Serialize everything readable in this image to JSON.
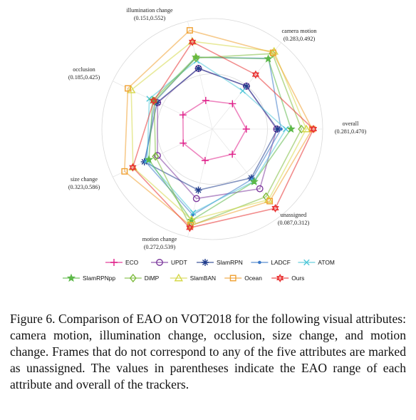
{
  "chart_data": {
    "type": "radar",
    "axes": [
      {
        "name": "overall",
        "range_label": "(0.281,0.470)",
        "min": 0.281,
        "max": 0.47
      },
      {
        "name": "camera motion",
        "range_label": "(0.283,0.492)",
        "min": 0.283,
        "max": 0.492
      },
      {
        "name": "illumination change",
        "range_label": "(0.151,0.552)",
        "min": 0.151,
        "max": 0.552
      },
      {
        "name": "occlusion",
        "range_label": "(0.185,0.425)",
        "min": 0.185,
        "max": 0.425
      },
      {
        "name": "size change",
        "range_label": "(0.323,0.586)",
        "min": 0.323,
        "max": 0.586
      },
      {
        "name": "motion change",
        "range_label": "(0.272,0.539)",
        "min": 0.272,
        "max": 0.539
      },
      {
        "name": "unassigned",
        "range_label": "(0.087,0.312)",
        "min": 0.087,
        "max": 0.312
      }
    ],
    "series": [
      {
        "name": "ECO",
        "color": "#e0208a",
        "marker": "plus",
        "values": [
          0.302,
          0.301,
          0.186,
          0.206,
          0.347,
          0.285,
          0.107
        ]
      },
      {
        "name": "UPDT",
        "color": "#7e3b9e",
        "marker": "circle",
        "values": [
          0.378,
          0.423,
          0.393,
          0.297,
          0.445,
          0.401,
          0.174
        ]
      },
      {
        "name": "SlamRPN",
        "color": "#1f3c8c",
        "marker": "asterisk",
        "values": [
          0.38,
          0.385,
          0.347,
          0.343,
          0.447,
          0.401,
          0.174
        ]
      },
      {
        "name": "LADCF",
        "color": "#3a78c8",
        "marker": "dot",
        "values": [
          0.389,
          0.389,
          0.482,
          0.34,
          0.455,
          0.441,
          0.28
        ]
      },
      {
        "name": "ATOM",
        "color": "#4fc7d8",
        "marker": "x",
        "values": [
          0.401,
          0.397,
          0.47,
          0.333,
          0.477,
          0.429,
          0.156
        ]
      },
      {
        "name": "SlamRPNpp",
        "color": "#5cb848",
        "marker": "star",
        "values": [
          0.414,
          0.398,
          0.512,
          0.327,
          0.464,
          0.442,
          0.278
        ]
      },
      {
        "name": "DiMP",
        "color": "#7cbb3c",
        "marker": "diamond",
        "values": [
          0.44,
          0.451,
          0.542,
          0.304,
          0.458,
          0.439,
          0.298
        ]
      },
      {
        "name": "SlamBAN",
        "color": "#d6d84a",
        "marker": "triangle",
        "values": [
          0.452,
          0.462,
          0.508,
          0.383,
          0.547,
          0.499,
          0.306
        ]
      },
      {
        "name": "Ocean",
        "color": "#f0a030",
        "marker": "square",
        "values": [
          0.467,
          0.467,
          0.539,
          0.413,
          0.56,
          0.539,
          0.301
        ]
      },
      {
        "name": "Ours",
        "color": "#e83030",
        "marker": "hexagram",
        "values": [
          0.47,
          0.492,
          0.552,
          0.384,
          0.46,
          0.497,
          0.218
        ]
      }
    ],
    "legend": "bottom",
    "grid": true
  },
  "caption": "Figure 6. Comparison of EAO on VOT2018 for the following visual attributes: camera motion, illumination change, occlusion, size change, and motion change. Frames that do not correspond to any of the five attributes are marked as unassigned. The values in parentheses indicate the EAO range of each attribute and overall of the trackers."
}
